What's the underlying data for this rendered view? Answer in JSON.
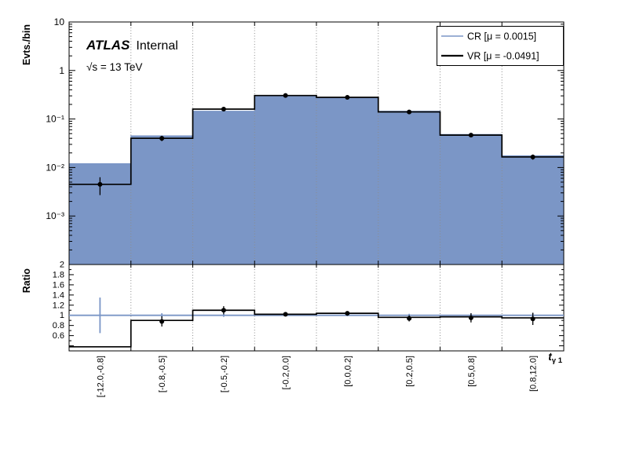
{
  "chart_data": {
    "type": "bar",
    "subtype": "hep-histogram-with-ratio-panel",
    "annotations": {
      "experiment": "ATLAS",
      "experiment_label": "Internal",
      "energy": "√s = 13 TeV"
    },
    "categories": [
      "[-12.0,-0.8]",
      "[-0.8,-0.5]",
      "[-0.5,-0.2]",
      "[-0.2,0.0]",
      "[0.0,0.2]",
      "[0.2,0.5]",
      "[0.5,0.8]",
      "[0.8,12.0]"
    ],
    "xlabel": {
      "main": "t",
      "sub": "γ 1"
    },
    "top_panel": {
      "ylabel": "Evts./bin",
      "yscale": "log",
      "ylim": [
        0.0001,
        10
      ],
      "ytick_labels": [
        {
          "v": 10,
          "label": "10"
        },
        {
          "v": 1,
          "label": "1"
        },
        {
          "v": 0.1,
          "label": "10⁻¹"
        },
        {
          "v": 0.01,
          "label": "10⁻²"
        },
        {
          "v": 0.001,
          "label": "10⁻³"
        }
      ],
      "series": [
        {
          "name": "CR [μ = 0.0015]",
          "style": "filled-histogram",
          "color": "#7b96c6",
          "values": [
            0.012,
            0.045,
            0.145,
            0.3,
            0.27,
            0.145,
            0.048,
            0.0175
          ]
        },
        {
          "name": "VR [μ = -0.0491]",
          "style": "points-with-hist-line",
          "color": "#000000",
          "values": [
            0.0045,
            0.04,
            0.16,
            0.305,
            0.28,
            0.14,
            0.0465,
            0.0165
          ],
          "errors": [
            0.0018,
            0.005,
            0.013,
            0.02,
            0.017,
            0.011,
            0.0045,
            0.002
          ]
        }
      ]
    },
    "ratio_panel": {
      "ylabel": "Ratio",
      "ylim": [
        0.3,
        2.0
      ],
      "yticks": [
        {
          "v": 2,
          "label": "2"
        },
        {
          "v": 1.8,
          "label": "1.8"
        },
        {
          "v": 1.6,
          "label": "1.6"
        },
        {
          "v": 1.4,
          "label": "1.4"
        },
        {
          "v": 1.2,
          "label": "1.2"
        },
        {
          "v": 1,
          "label": "1"
        },
        {
          "v": 0.8,
          "label": "0.8"
        },
        {
          "v": 0.6,
          "label": "0.6"
        }
      ],
      "reference": {
        "value": 1.0,
        "color": "#7b96c6",
        "errors": [
          0.35,
          0.04,
          0.03,
          0.02,
          0.02,
          0.03,
          0.04,
          0.05
        ]
      },
      "step_values": [
        0.38,
        0.9,
        1.1,
        1.02,
        1.04,
        0.96,
        0.97,
        0.95
      ],
      "points": [
        null,
        0.88,
        1.1,
        1.02,
        1.04,
        0.94,
        0.95,
        0.93
      ],
      "point_errors": [
        null,
        0.1,
        0.08,
        0.04,
        0.04,
        0.06,
        0.09,
        0.12
      ]
    },
    "legend": {
      "entries": [
        {
          "label": "CR [μ = 0.0015]",
          "color": "#7b96c6",
          "line_width": 1.6
        },
        {
          "label": "VR [μ = -0.0491]",
          "color": "#000000",
          "line_width": 2.2
        }
      ]
    }
  }
}
